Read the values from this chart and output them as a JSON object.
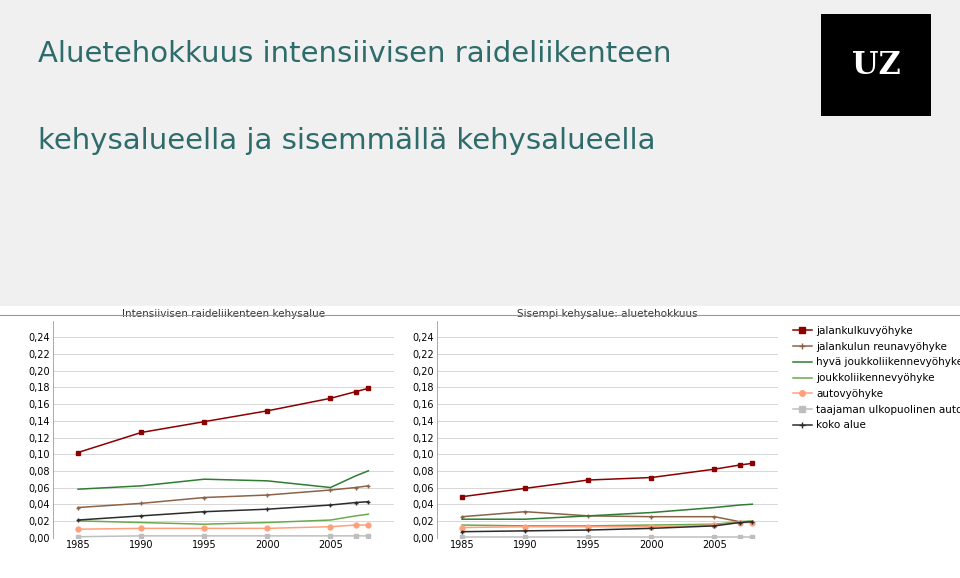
{
  "title_line1": "Aluetehokkuus intensiivisen raideliikenteen",
  "title_line2": "kehysalueella ja sisemmällä kehysalueella",
  "subtitle_left": "Intensiivisen raideliikenteen kehysalue",
  "subtitle_right": "Sisempi kehysalue: aluetehokkuus",
  "years": [
    1985,
    1990,
    1995,
    2000,
    2005,
    2007,
    2008
  ],
  "xlim": [
    1983,
    2010
  ],
  "ylim": [
    0.0,
    0.26
  ],
  "yticks": [
    0.0,
    0.02,
    0.04,
    0.06,
    0.08,
    0.1,
    0.12,
    0.14,
    0.16,
    0.18,
    0.2,
    0.22,
    0.24
  ],
  "xticks": [
    1985,
    1990,
    1995,
    2000,
    2005
  ],
  "series": [
    {
      "name": "jalankulkuvyöhyke",
      "color": "#8B0000",
      "marker": "s",
      "left": [
        0.102,
        0.126,
        0.139,
        0.152,
        0.167,
        0.175,
        0.179
      ],
      "right": [
        0.049,
        0.059,
        0.069,
        0.072,
        0.082,
        0.087,
        0.089
      ]
    },
    {
      "name": "jalankulun reunavyöhyke",
      "color": "#8B6347",
      "marker": "+",
      "left": [
        0.036,
        0.041,
        0.048,
        0.051,
        0.057,
        0.06,
        0.062
      ],
      "right": [
        0.025,
        0.031,
        0.026,
        0.025,
        0.025,
        0.019,
        0.019
      ]
    },
    {
      "name": "hyvä joukkoliikennevyöhyke",
      "color": "#2E7D32",
      "marker": null,
      "left": [
        0.058,
        0.062,
        0.07,
        0.068,
        0.06,
        0.074,
        0.08
      ],
      "right": [
        0.022,
        0.022,
        0.026,
        0.03,
        0.036,
        0.039,
        0.04
      ]
    },
    {
      "name": "joukkoliikennevyöhyke",
      "color": "#6aaa4e",
      "marker": null,
      "left": [
        0.02,
        0.018,
        0.016,
        0.018,
        0.021,
        0.026,
        0.028
      ],
      "right": [
        0.015,
        0.014,
        0.014,
        0.015,
        0.016,
        0.019,
        0.02
      ]
    },
    {
      "name": "autovyöhyke",
      "color": "#FFA07A",
      "marker": "o",
      "left": [
        0.01,
        0.011,
        0.011,
        0.011,
        0.013,
        0.015,
        0.015
      ],
      "right": [
        0.012,
        0.013,
        0.013,
        0.013,
        0.015,
        0.018,
        0.018
      ]
    },
    {
      "name": "taajaman ulkopuolinen autovyöhyke",
      "color": "#BEBEBE",
      "marker": "s",
      "left": [
        0.001,
        0.002,
        0.002,
        0.002,
        0.002,
        0.002,
        0.002
      ],
      "right": [
        0.001,
        0.001,
        0.001,
        0.001,
        0.001,
        0.001,
        0.001
      ]
    },
    {
      "name": "koko alue",
      "color": "#2c2c2c",
      "marker": "+",
      "left": [
        0.021,
        0.026,
        0.031,
        0.034,
        0.039,
        0.042,
        0.043
      ],
      "right": [
        0.007,
        0.008,
        0.009,
        0.011,
        0.014,
        0.018,
        0.019
      ]
    }
  ],
  "background_color": "#F0F0F0",
  "chart_bg": "#FFFFFF",
  "title_color": "#2E6B6B",
  "title_fontsize": 21,
  "subtitle_fontsize": 7.5,
  "label_fontsize": 7,
  "legend_fontsize": 7.5
}
